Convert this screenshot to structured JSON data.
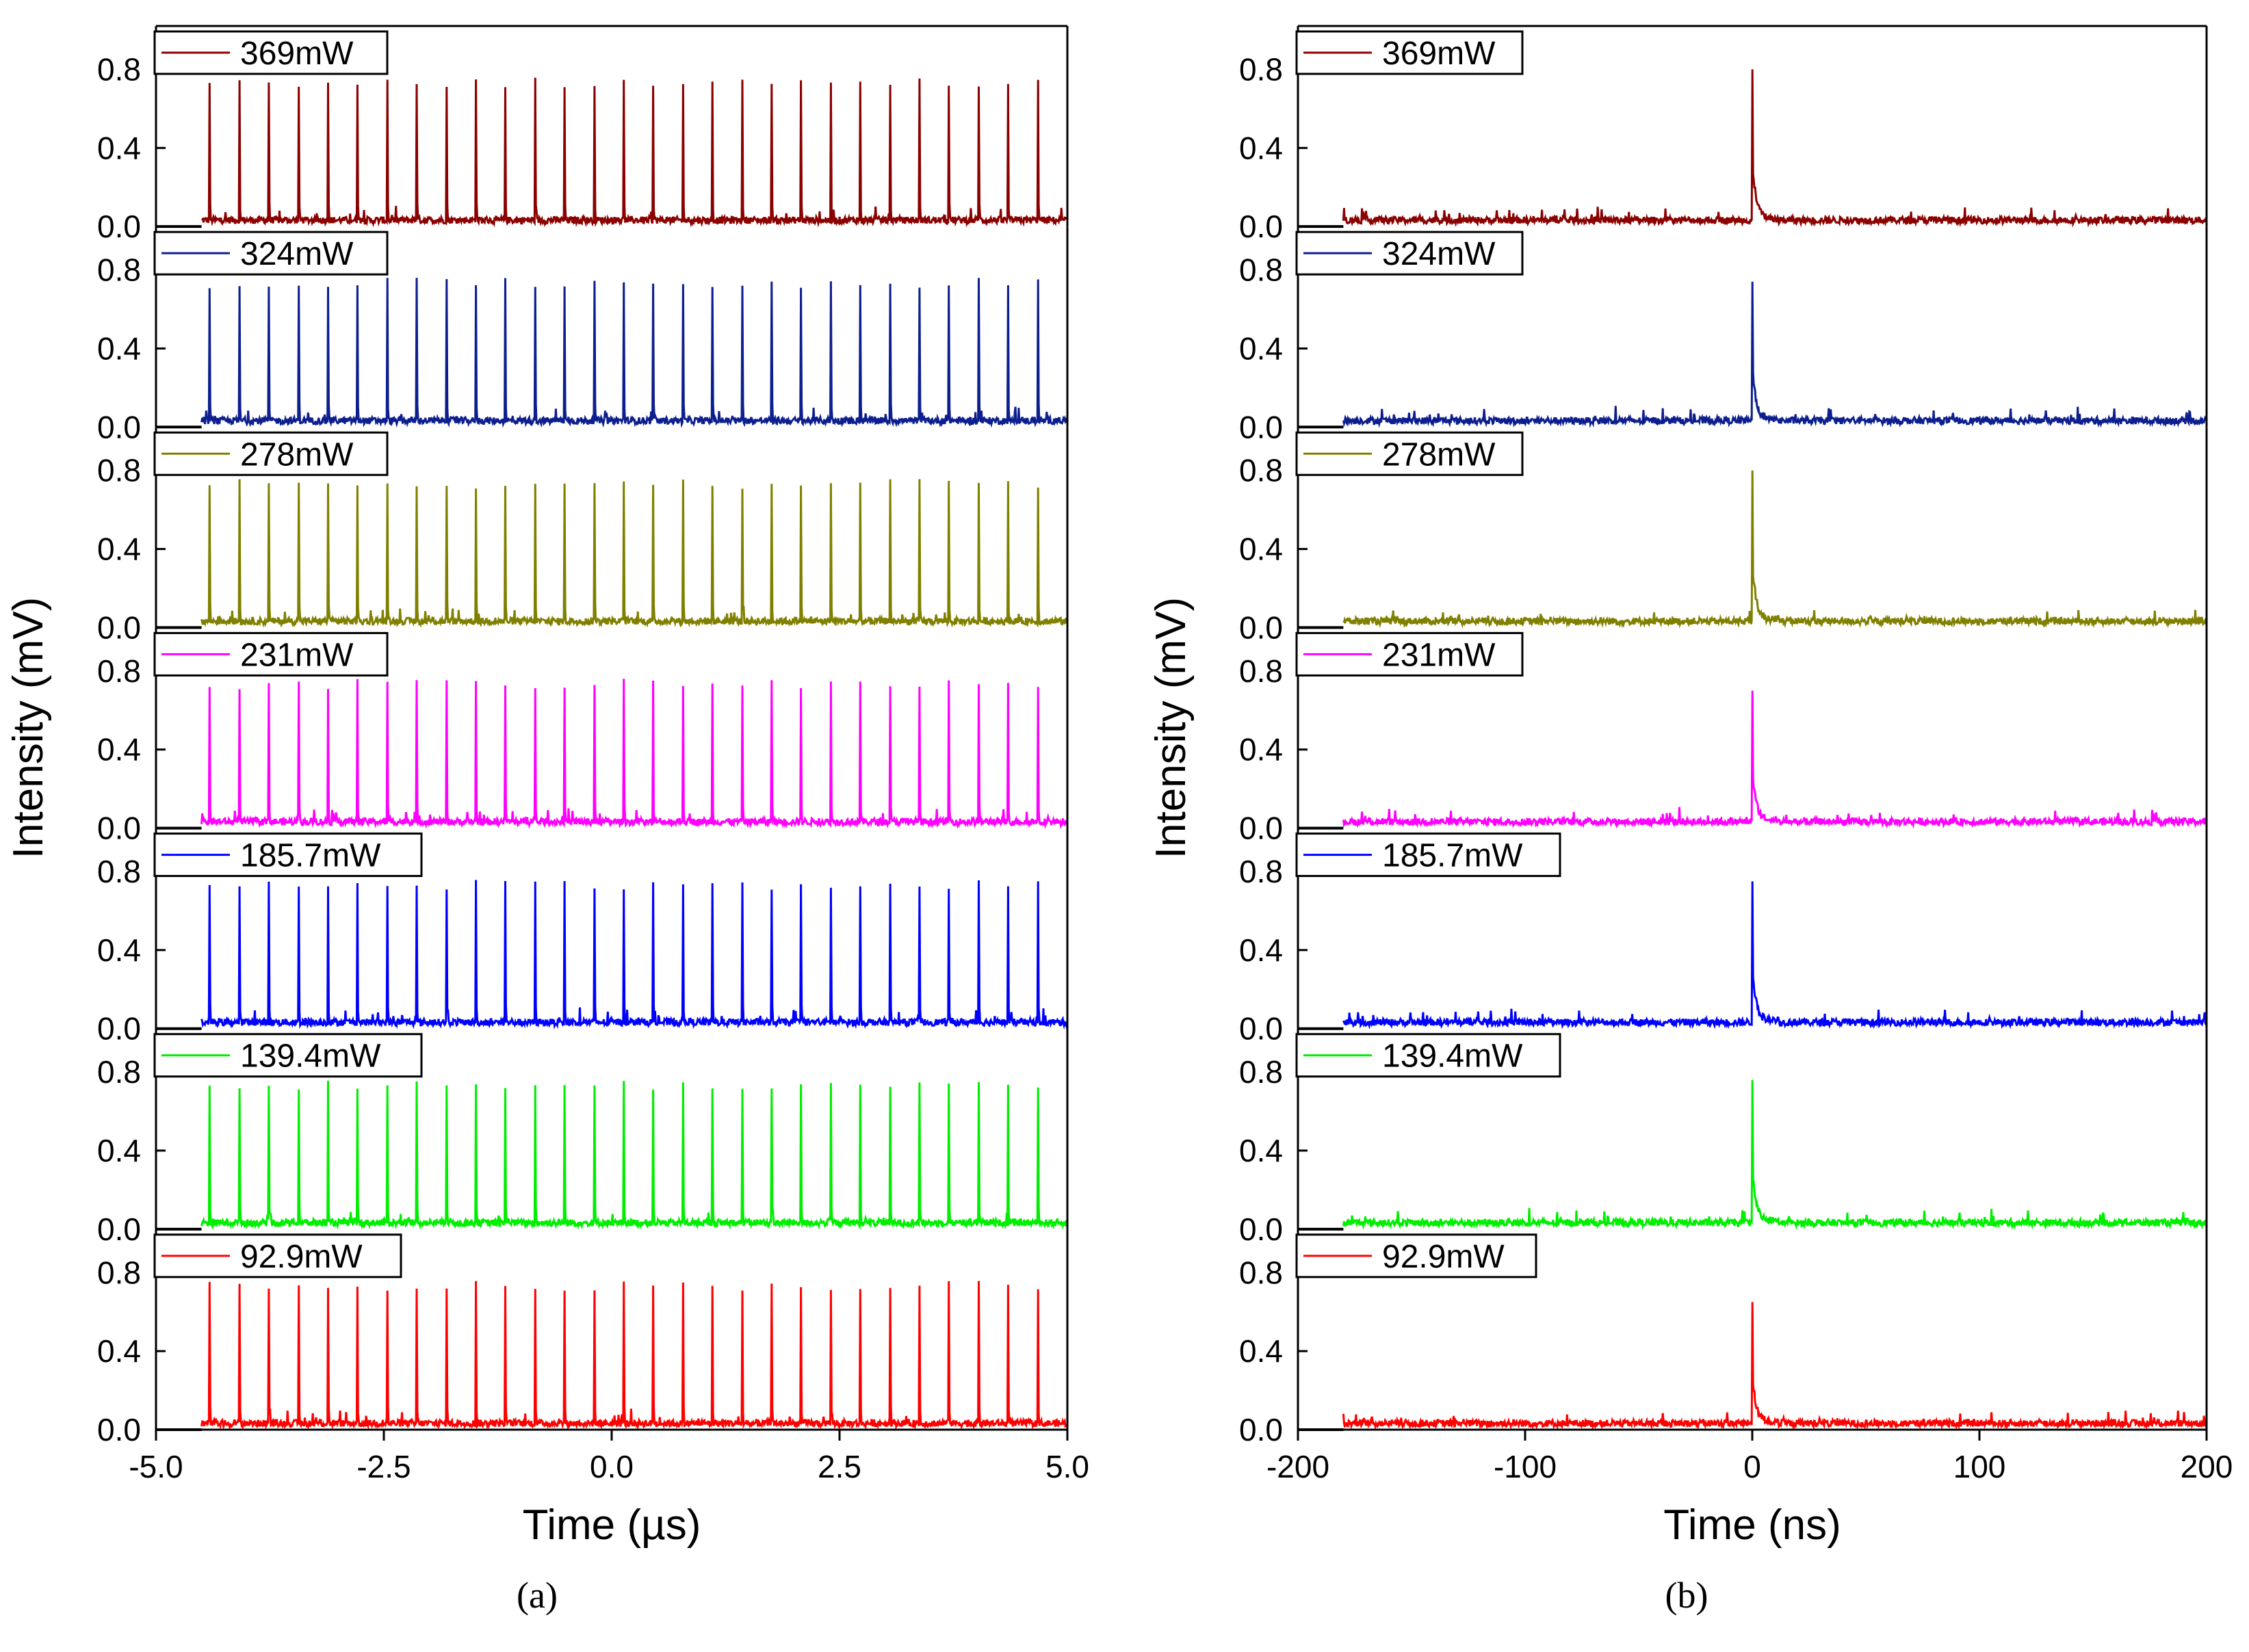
{
  "chart_data": [
    {
      "type": "line",
      "panel_caption": "(a)",
      "xlabel": "Time (µs)",
      "ylabel": "Intensity (mV)",
      "xlim": [
        -5.0,
        5.0
      ],
      "ylim": [
        0.0,
        1.0
      ],
      "xticks": [
        "-5.0",
        "-2.5",
        "0.0",
        "2.5",
        "5.0"
      ],
      "yticks": [
        "0.0",
        "0.4",
        "0.8"
      ],
      "trace_start": -4.5,
      "pulse_period": 0.3245,
      "pulse_peak": 0.76,
      "series": [
        {
          "name": "369mW",
          "color": "#8b0000"
        },
        {
          "name": "324mW",
          "color": "#0d1f8f"
        },
        {
          "name": "278mW",
          "color": "#808000"
        },
        {
          "name": "231mW",
          "color": "#ff00ff"
        },
        {
          "name": "185.7mW",
          "color": "#0000ff"
        },
        {
          "name": "139.4mW",
          "color": "#00ee00"
        },
        {
          "name": "92.9mW",
          "color": "#ff0000"
        }
      ]
    },
    {
      "type": "line",
      "panel_caption": "(b)",
      "xlabel": "Time (ns)",
      "ylabel": "Intensity (mV)",
      "xlim": [
        -200,
        200
      ],
      "ylim": [
        0.0,
        1.0
      ],
      "xticks": [
        "-200",
        "-100",
        "0",
        "100",
        "200"
      ],
      "yticks": [
        "0.0",
        "0.4",
        "0.8"
      ],
      "trace_start": -180,
      "series": [
        {
          "name": "369mW",
          "color": "#8b0000",
          "peak": 0.8
        },
        {
          "name": "324mW",
          "color": "#0d1f8f",
          "peak": 0.74
        },
        {
          "name": "278mW",
          "color": "#808000",
          "peak": 0.8
        },
        {
          "name": "231mW",
          "color": "#ff00ff",
          "peak": 0.7
        },
        {
          "name": "185.7mW",
          "color": "#0000ff",
          "peak": 0.75
        },
        {
          "name": "139.4mW",
          "color": "#00ee00",
          "peak": 0.76
        },
        {
          "name": "92.9mW",
          "color": "#ff0000",
          "peak": 0.65
        }
      ]
    }
  ]
}
